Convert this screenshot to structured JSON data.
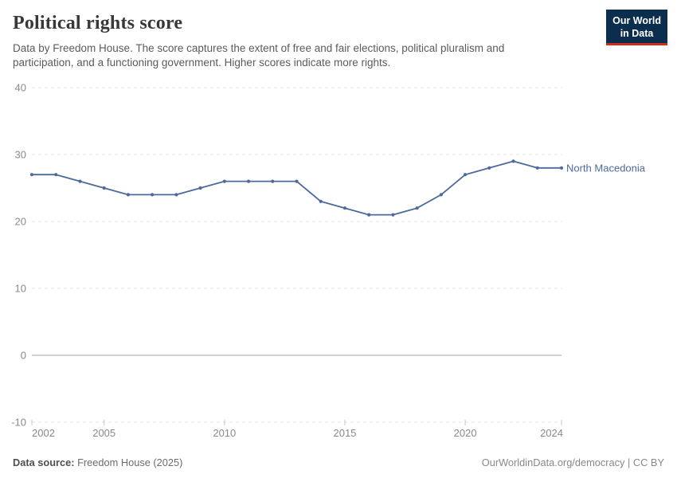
{
  "header": {
    "title": "Political rights score",
    "subtitle": "Data by Freedom House. The score captures the extent of free and fair elections, political pluralism and participation, and a functioning government. Higher scores indicate more rights.",
    "logo": {
      "line1": "Our World",
      "line2": "in Data"
    }
  },
  "chart_data": {
    "type": "line",
    "title": "Political rights score",
    "x": [
      2002,
      2003,
      2004,
      2005,
      2006,
      2007,
      2008,
      2009,
      2010,
      2011,
      2012,
      2013,
      2014,
      2015,
      2016,
      2017,
      2018,
      2019,
      2020,
      2021,
      2022,
      2023,
      2024
    ],
    "series": [
      {
        "name": "North Macedonia",
        "color": "#4c6a9c",
        "values": [
          27,
          27,
          26,
          25,
          24,
          24,
          24,
          25,
          26,
          26,
          26,
          26,
          23,
          22,
          21,
          21,
          22,
          24,
          27,
          28,
          29,
          28,
          28
        ]
      }
    ],
    "x_ticks": [
      2002,
      2005,
      2010,
      2015,
      2020,
      2024
    ],
    "y_ticks": [
      40,
      30,
      20,
      10,
      0,
      -10
    ],
    "xlim": [
      2002,
      2024
    ],
    "ylim": [
      -10,
      40
    ],
    "grid": "horizontal-dashed",
    "zero_line": true,
    "legend_position": "end-of-line"
  },
  "footer": {
    "source_label": "Data source:",
    "source_value": " Freedom House (2025)",
    "credit": "OurWorldinData.org/democracy | CC BY"
  },
  "colors": {
    "series_blue": "#4c6a9c",
    "gridline": "#e2e2e2",
    "zero_line": "#a6a6a6",
    "axis_label": "#8a8a8a",
    "tick_mark": "#c8c8c8",
    "logo_bg": "#0c2e4e",
    "logo_red": "#ce2a1d",
    "title_text": "#383838",
    "subtitle_text": "#5b5b5b"
  }
}
